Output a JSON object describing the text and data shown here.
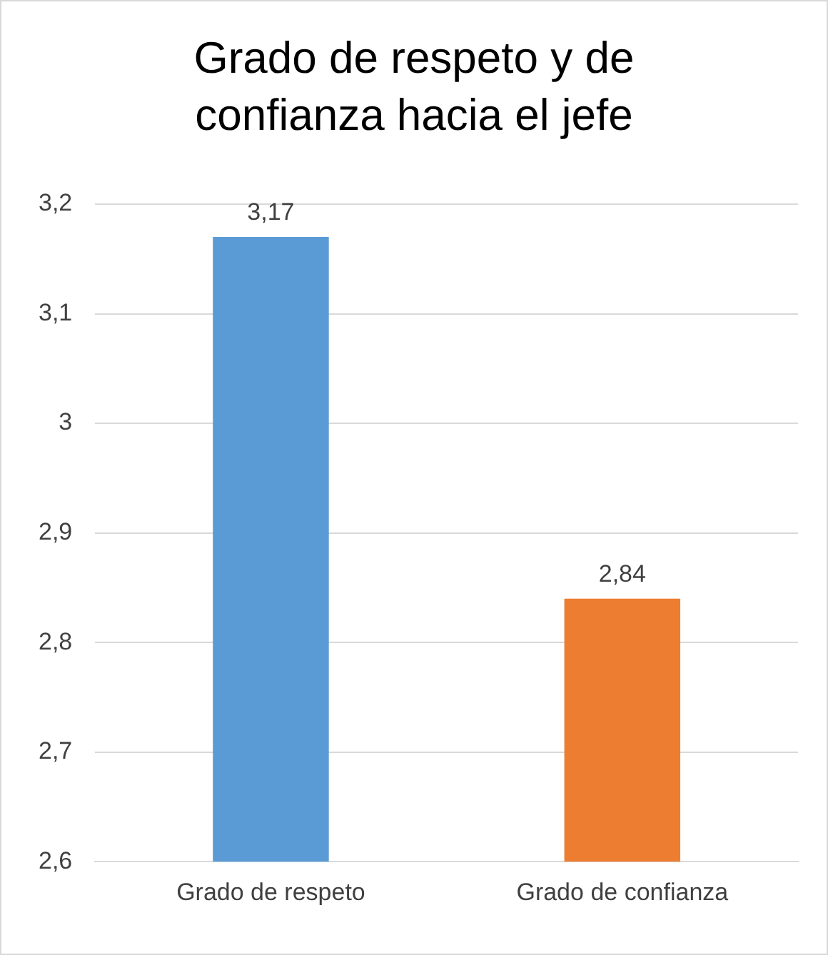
{
  "chart_data": {
    "type": "bar",
    "title": "Grado de respeto y de confianza hacia el jefe",
    "categories": [
      "Grado de respeto",
      "Grado de confianza"
    ],
    "values": [
      3.17,
      2.84
    ],
    "colors": [
      "#5b9bd5",
      "#ed7d31"
    ],
    "value_labels": [
      "3,17",
      "2,84"
    ],
    "ylim": [
      2.6,
      3.2
    ],
    "yticks": [
      {
        "value": 2.6,
        "label": "2,6"
      },
      {
        "value": 2.7,
        "label": "2,7"
      },
      {
        "value": 2.8,
        "label": "2,8"
      },
      {
        "value": 2.9,
        "label": "2,9"
      },
      3,
      {
        "value": 3.1,
        "label": "3,1"
      },
      {
        "value": 3.2,
        "label": "3,2"
      }
    ],
    "grid": "y",
    "legend": false
  }
}
